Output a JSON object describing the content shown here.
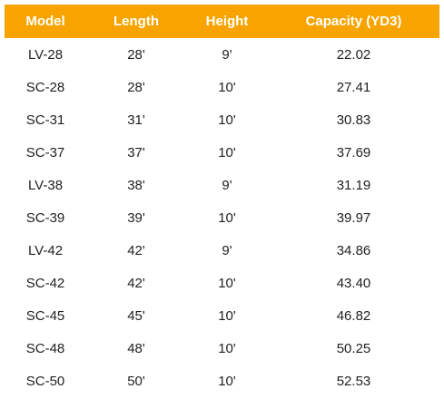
{
  "table": {
    "header": [
      "Model",
      "Length",
      "Height",
      "Capacity (YD3)"
    ],
    "rows": [
      [
        "LV-28",
        "28'",
        "9'",
        "22.02"
      ],
      [
        "SC-28",
        "28'",
        "10'",
        "27.41"
      ],
      [
        "SC-31",
        "31'",
        "10'",
        "30.83"
      ],
      [
        "SC-37",
        "37'",
        "10'",
        "37.69"
      ],
      [
        "LV-38",
        "38'",
        "9'",
        "31.19"
      ],
      [
        "SC-39",
        "39'",
        "10'",
        "39.97"
      ],
      [
        "LV-42",
        "42'",
        "9'",
        "34.86"
      ],
      [
        "SC-42",
        "42'",
        "10'",
        "43.40"
      ],
      [
        "SC-45",
        "45'",
        "10'",
        "46.82"
      ],
      [
        "SC-48",
        "48'",
        "10'",
        "50.25"
      ],
      [
        "SC-50",
        "50'",
        "10'",
        "52.53"
      ]
    ]
  }
}
